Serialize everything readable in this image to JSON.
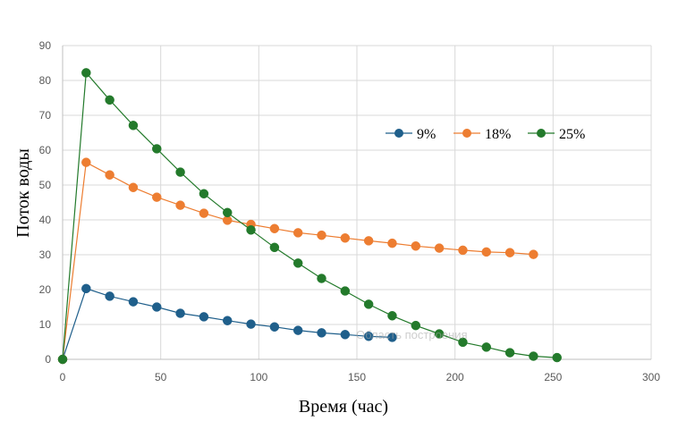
{
  "chart_data": {
    "type": "line",
    "title": "",
    "xlabel": "Время (час)",
    "ylabel": "Поток воды",
    "xlim": [
      0,
      300
    ],
    "ylim": [
      0,
      90
    ],
    "xticks": [
      0,
      50,
      100,
      150,
      200,
      250,
      300
    ],
    "yticks": [
      0,
      10,
      20,
      30,
      40,
      50,
      60,
      70,
      80,
      90
    ],
    "grid": true,
    "legend_position": "right, upper-middle",
    "series": [
      {
        "name": "9%",
        "color": "#1f5f8b",
        "x": [
          0,
          12,
          24,
          36,
          48,
          60,
          72,
          84,
          96,
          108,
          120,
          132,
          144,
          156,
          168
        ],
        "y": [
          0,
          20.3,
          18.1,
          16.5,
          15.0,
          13.2,
          12.2,
          11.1,
          10.1,
          9.3,
          8.3,
          7.6,
          7.1,
          6.6,
          6.3
        ]
      },
      {
        "name": "18%",
        "color": "#ed7d31",
        "x": [
          0,
          12,
          24,
          36,
          48,
          60,
          72,
          84,
          96,
          108,
          120,
          132,
          144,
          156,
          168,
          180,
          192,
          204,
          216,
          228,
          240
        ],
        "y": [
          0,
          56.5,
          52.9,
          49.3,
          46.5,
          44.2,
          41.9,
          39.9,
          38.7,
          37.5,
          36.3,
          35.6,
          34.8,
          34.0,
          33.3,
          32.5,
          31.9,
          31.3,
          30.8,
          30.6,
          30.1
        ]
      },
      {
        "name": "25%",
        "color": "#237a2b",
        "x": [
          0,
          12,
          24,
          36,
          48,
          60,
          72,
          84,
          96,
          108,
          120,
          132,
          144,
          156,
          168,
          180,
          192,
          204,
          216,
          228,
          240,
          252
        ],
        "y": [
          0,
          82.2,
          74.4,
          67.1,
          60.4,
          53.7,
          47.5,
          42.1,
          37.1,
          32.1,
          27.6,
          23.2,
          19.6,
          15.8,
          12.5,
          9.7,
          7.3,
          4.9,
          3.5,
          1.9,
          0.9,
          0.5
        ]
      }
    ]
  },
  "ghost_tooltip": "Область построения"
}
